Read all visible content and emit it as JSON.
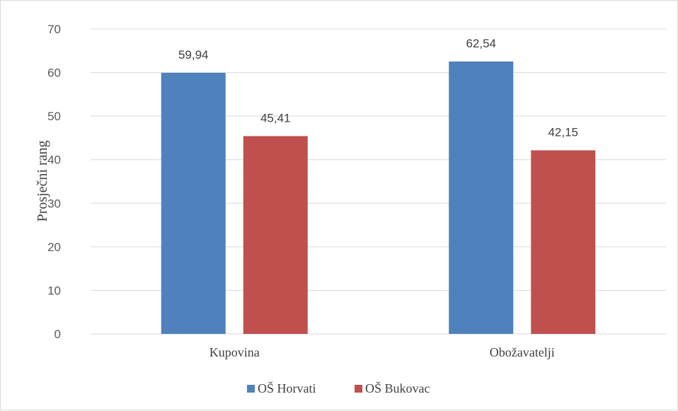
{
  "chart_data": {
    "type": "bar",
    "categories": [
      "Kupovina",
      "Obožavatelji"
    ],
    "series": [
      {
        "name": "OŠ Horvati",
        "values": [
          59.94,
          62.54
        ],
        "labels": [
          "59,94",
          "62,54"
        ],
        "color": "#4f81bd"
      },
      {
        "name": "OŠ Bukovac",
        "values": [
          45.41,
          42.15
        ],
        "labels": [
          "45,41",
          "42,15"
        ],
        "color": "#c0504d"
      }
    ],
    "title": "",
    "xlabel": "",
    "ylabel": "Prosječni rang",
    "ylim": [
      0,
      70
    ],
    "yticks": [
      0,
      10,
      20,
      30,
      40,
      50,
      60,
      70
    ],
    "grid": true,
    "legend_position": "bottom"
  }
}
